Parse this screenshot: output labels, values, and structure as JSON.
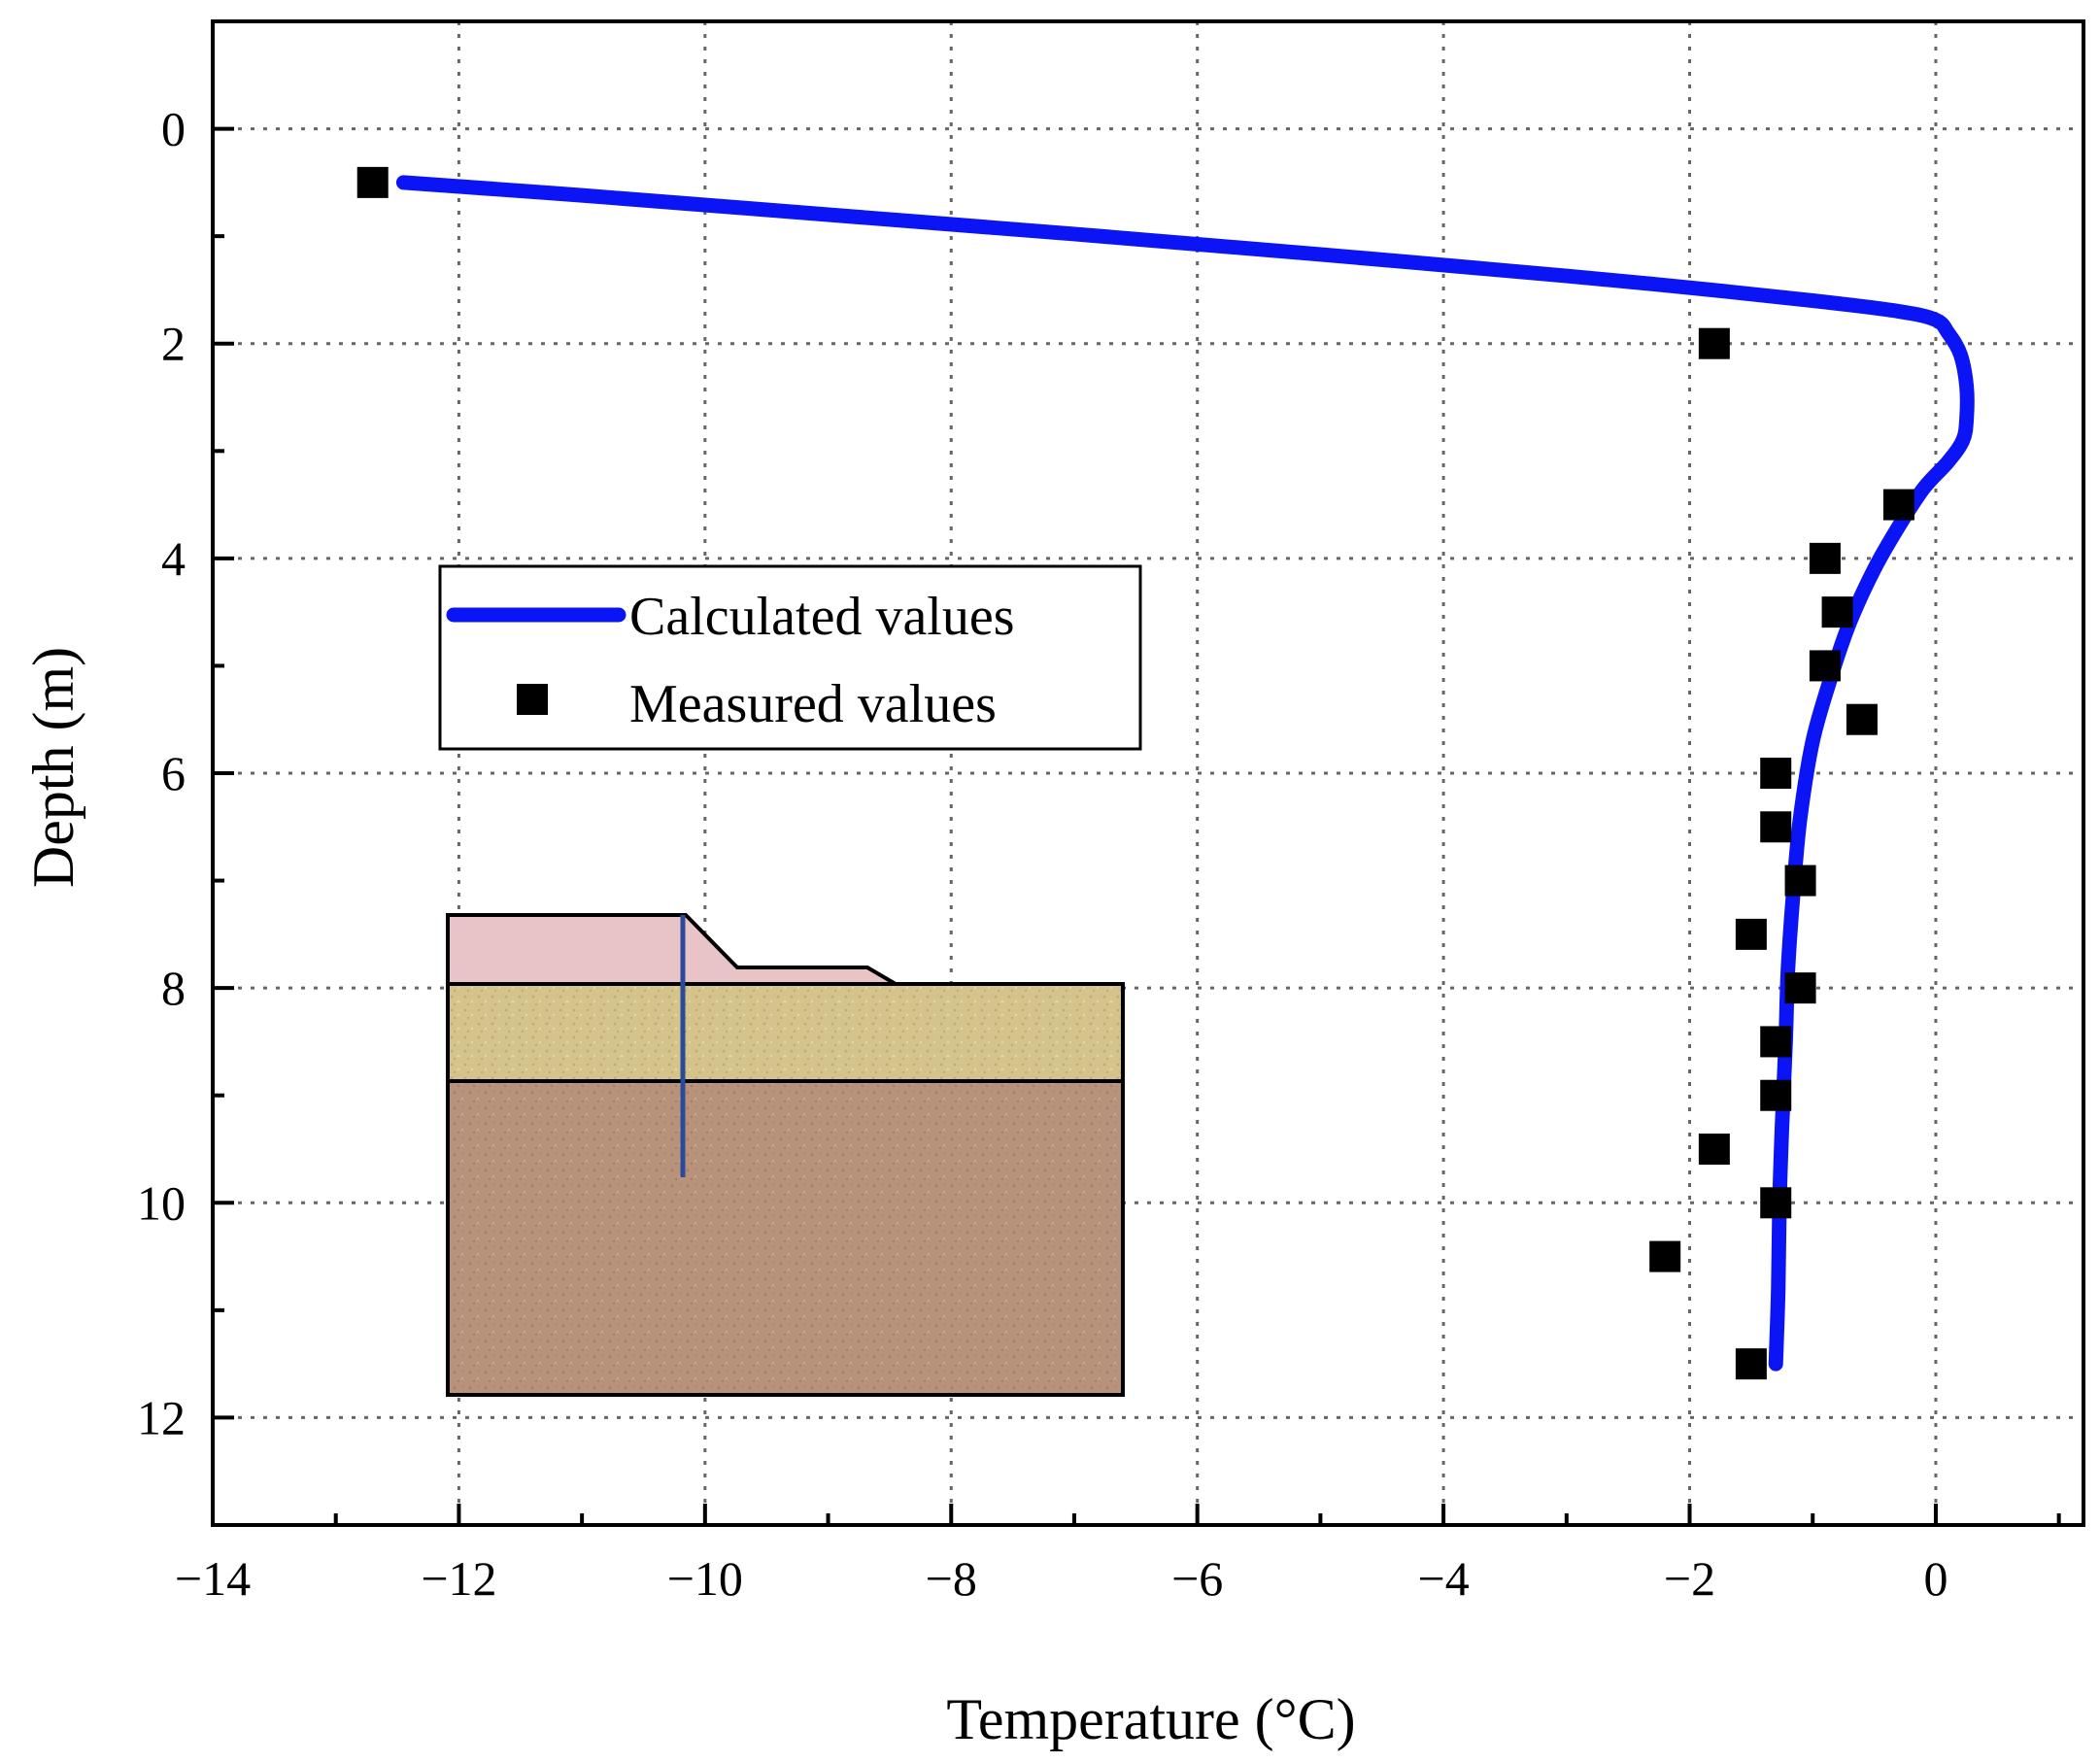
{
  "chart_data": {
    "type": "line+scatter",
    "title": "",
    "xlabel": "Temperature (°C)",
    "ylabel": "Depth (m)",
    "xlim": [
      -14,
      1.2
    ],
    "ylim": [
      -1,
      13
    ],
    "y_inverted": true,
    "grid": true,
    "x_ticks": [
      -14,
      -12,
      -10,
      -8,
      -6,
      -4,
      -2,
      0
    ],
    "x_tick_labels": [
      "−14",
      "−12",
      "−10",
      "−8",
      "−6",
      "−4",
      "−2",
      "0"
    ],
    "y_ticks": [
      0,
      2,
      4,
      6,
      8,
      10,
      12
    ],
    "y_tick_labels": [
      "0",
      "2",
      "4",
      "6",
      "8",
      "10",
      "12"
    ],
    "legend_position": "center-left",
    "series": [
      {
        "name": "Calculated values",
        "kind": "line",
        "color": "#0a14f5",
        "x": [
          -12.45,
          -11.0,
          -9.0,
          -7.0,
          -5.0,
          -3.0,
          -2.0,
          -1.0,
          -0.3,
          0.0,
          0.1,
          0.2,
          0.25,
          0.25,
          0.22,
          0.1,
          -0.1,
          -0.3,
          -0.5,
          -0.7,
          -0.85,
          -1.0,
          -1.1,
          -1.15,
          -1.2,
          -1.22,
          -1.25,
          -1.27,
          -1.28,
          -1.3
        ],
        "y": [
          0.5,
          0.62,
          0.8,
          0.98,
          1.17,
          1.37,
          1.48,
          1.6,
          1.7,
          1.78,
          1.9,
          2.1,
          2.4,
          2.7,
          2.9,
          3.1,
          3.35,
          3.7,
          4.1,
          4.6,
          5.1,
          5.7,
          6.4,
          7.0,
          7.8,
          8.5,
          9.3,
          10.0,
          10.8,
          11.5
        ]
      },
      {
        "name": "Measured values",
        "kind": "scatter",
        "color": "#000000",
        "x": [
          -12.7,
          -1.8,
          -0.3,
          -0.9,
          -0.8,
          -0.9,
          -0.6,
          -1.3,
          -1.3,
          -1.1,
          -1.5,
          -1.1,
          -1.3,
          -1.3,
          -1.8,
          -1.3,
          -2.2,
          -1.5
        ],
        "y": [
          0.5,
          2.0,
          3.5,
          4.0,
          4.5,
          5.0,
          5.5,
          6.0,
          6.5,
          7.0,
          7.5,
          8.0,
          8.5,
          9.0,
          9.5,
          10.0,
          10.5,
          11.5
        ]
      }
    ]
  }
}
